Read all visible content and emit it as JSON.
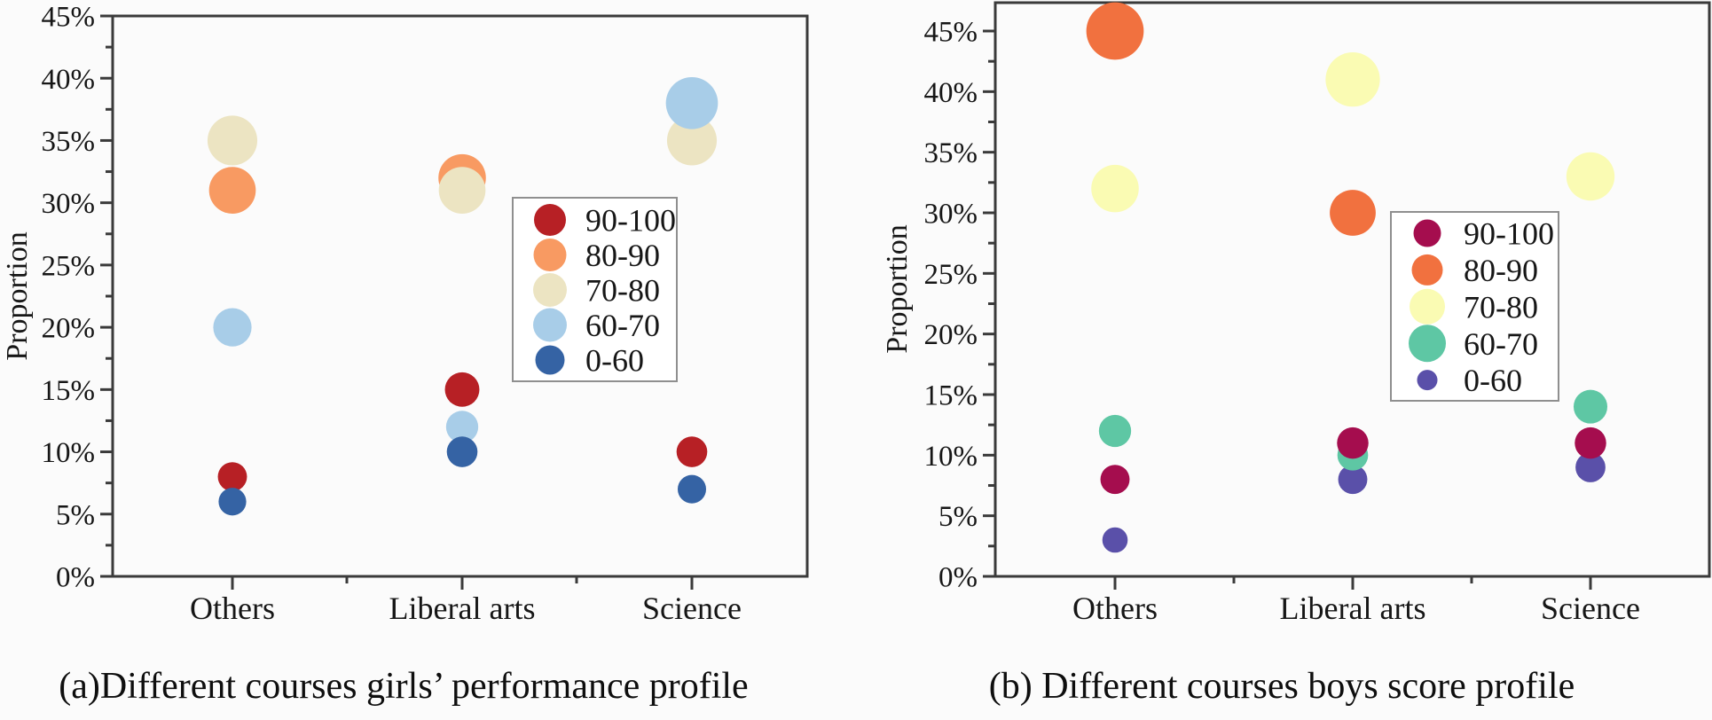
{
  "figure": {
    "ylabel": "Proportion",
    "tick_suffix": "%"
  },
  "chart_data": [
    {
      "type": "scatter",
      "caption": "(a)Different courses girls’ performance profile",
      "ylabel": "Proportion",
      "categories": [
        "Others",
        "Liberal arts",
        "Science"
      ],
      "ylim": [
        0,
        45
      ],
      "ytick_step": 5,
      "ytick_minor_step": 2.5,
      "tick_suffix": "%",
      "grid": false,
      "legend_position": "center-right-inside",
      "legend_labels": [
        "90-100",
        "80-90",
        "70-80",
        "60-70",
        "0-60"
      ],
      "series": [
        {
          "name": "90-100",
          "color": "#b72025",
          "values": [
            8,
            15,
            10
          ]
        },
        {
          "name": "80-90",
          "color": "#f89a62",
          "values": [
            31,
            32,
            null
          ]
        },
        {
          "name": "70-80",
          "color": "#ece4c2",
          "values": [
            35,
            31,
            35
          ]
        },
        {
          "name": "60-70",
          "color": "#a8cde8",
          "values": [
            20,
            12,
            38
          ]
        },
        {
          "name": "0-60",
          "color": "#3563a4",
          "values": [
            6,
            10,
            7
          ]
        }
      ]
    },
    {
      "type": "scatter",
      "caption": "(b) Different courses boys score profile",
      "ylabel": "Proportion",
      "categories": [
        "Others",
        "Liberal arts",
        "Science"
      ],
      "ylim": [
        0,
        45
      ],
      "ytick_step": 5,
      "ytick_minor_step": 2.5,
      "tick_suffix": "%",
      "grid": false,
      "legend_position": "center-right-inside",
      "legend_labels": [
        "90-100",
        "80-90",
        "70-80",
        "60-70",
        "0-60"
      ],
      "series": [
        {
          "name": "90-100",
          "color": "#a50d4e",
          "values": [
            8,
            11,
            11
          ]
        },
        {
          "name": "80-90",
          "color": "#f1713f",
          "values": [
            45,
            30,
            null
          ]
        },
        {
          "name": "70-80",
          "color": "#fafbb3",
          "values": [
            32,
            41,
            33
          ]
        },
        {
          "name": "60-70",
          "color": "#5ec7a4",
          "values": [
            12,
            10,
            14
          ]
        },
        {
          "name": "0-60",
          "color": "#5a50a9",
          "values": [
            3,
            8,
            9
          ]
        }
      ]
    }
  ]
}
